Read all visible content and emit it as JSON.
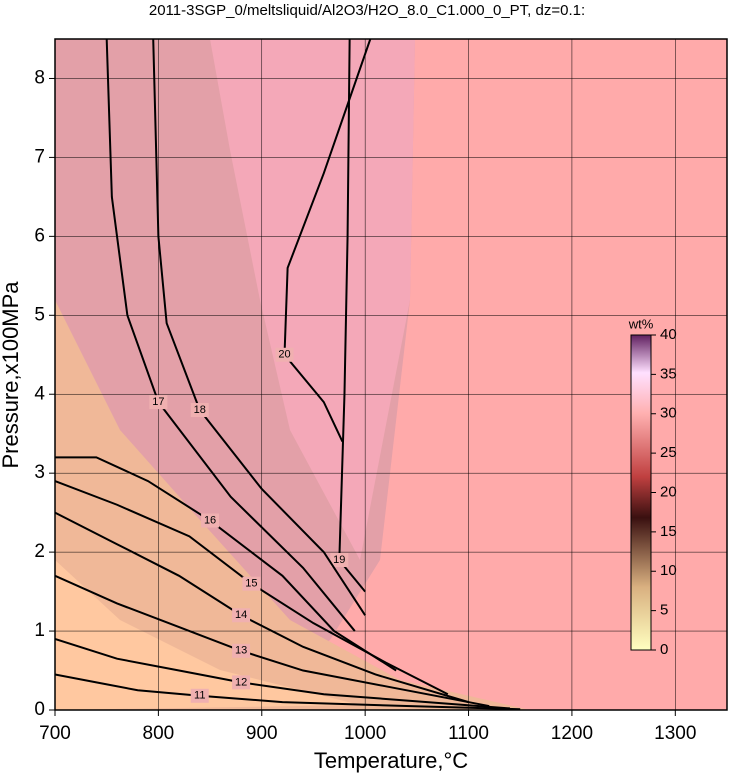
{
  "chart_data": {
    "type": "contour",
    "title": "2011-3SGP_0/meltsliquid/Al2O3/H2O_8.0_C1.000_0_PT, dz=0.1:",
    "x_label": "Temperature,°C",
    "y_label": "Pressure,x100MPa",
    "xlim": [
      700,
      1350
    ],
    "ylim": [
      0,
      8.5
    ],
    "xticks": [
      700,
      800,
      900,
      1000,
      1100,
      1200,
      1300
    ],
    "yticks": [
      0,
      1,
      2,
      3,
      4,
      5,
      6,
      7,
      8
    ],
    "grid": true,
    "colorbar": {
      "label": "wt%",
      "lim": [
        0,
        40
      ],
      "ticks": [
        0,
        5,
        10,
        15,
        20,
        25,
        30,
        35,
        40
      ]
    },
    "contours": [
      {
        "level": 20,
        "x": [
          1005,
          960,
          925,
          922,
          960,
          978
        ],
        "y": [
          8.5,
          6.8,
          5.6,
          4.5,
          3.9,
          3.4
        ]
      },
      {
        "level": 19,
        "x": [
          985,
          983,
          980,
          975,
          978,
          1000
        ],
        "y": [
          8.5,
          6,
          4,
          1.9,
          1.85,
          1.5
        ]
      },
      {
        "level": 18,
        "x": [
          795,
          800,
          808,
          840,
          900,
          960,
          1000
        ],
        "y": [
          8.5,
          6,
          4.9,
          3.8,
          2.8,
          2,
          1.2
        ]
      },
      {
        "level": 17,
        "x": [
          750,
          755,
          770,
          800,
          870,
          940,
          990
        ],
        "y": [
          8.5,
          6.5,
          5,
          3.9,
          2.7,
          1.8,
          1.0
        ]
      },
      {
        "level": 16,
        "x": [
          700,
          740,
          790,
          850,
          920,
          970,
          1030
        ],
        "y": [
          3.2,
          3.2,
          2.9,
          2.4,
          1.7,
          1.0,
          0.5
        ]
      },
      {
        "level": 15,
        "x": [
          700,
          760,
          830,
          890,
          950,
          1020,
          1080
        ],
        "y": [
          2.9,
          2.6,
          2.2,
          1.6,
          1.1,
          0.6,
          0.2
        ]
      },
      {
        "level": 14,
        "x": [
          700,
          760,
          820,
          880,
          940,
          1010,
          1100
        ],
        "y": [
          2.5,
          2.1,
          1.7,
          1.2,
          0.8,
          0.45,
          0.1
        ]
      },
      {
        "level": 13,
        "x": [
          700,
          760,
          820,
          880,
          940,
          1020,
          1120
        ],
        "y": [
          1.7,
          1.35,
          1.05,
          0.75,
          0.5,
          0.3,
          0.05
        ]
      },
      {
        "level": 12,
        "x": [
          700,
          760,
          820,
          880,
          960,
          1060,
          1140
        ],
        "y": [
          0.9,
          0.65,
          0.5,
          0.35,
          0.2,
          0.1,
          0.02
        ]
      },
      {
        "level": 11,
        "x": [
          700,
          740,
          780,
          840,
          920,
          1040,
          1150
        ],
        "y": [
          0.45,
          0.35,
          0.25,
          0.18,
          0.1,
          0.05,
          0.01
        ]
      }
    ]
  }
}
